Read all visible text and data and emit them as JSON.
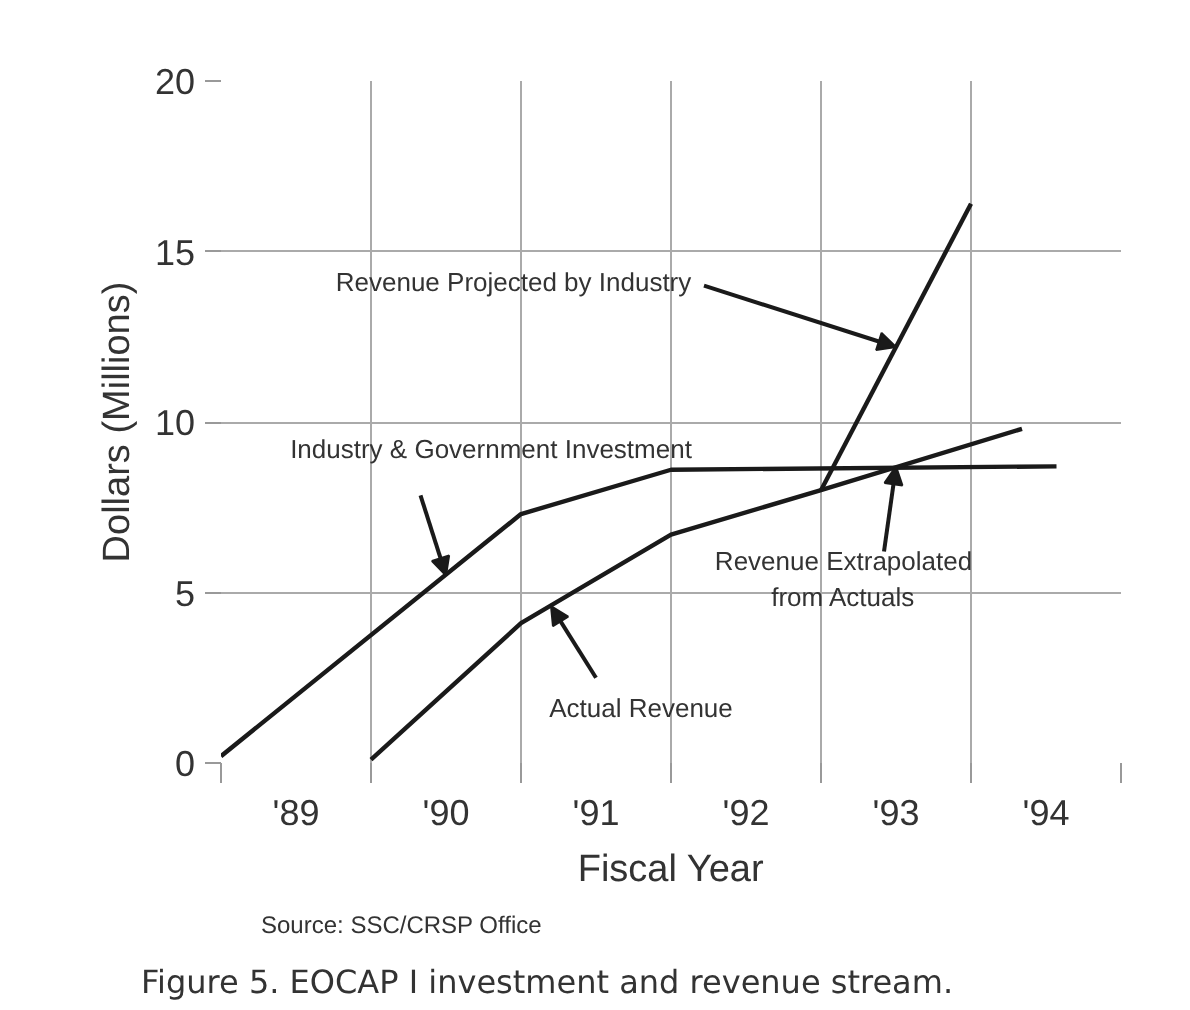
{
  "chart_data": {
    "type": "line",
    "title": "Figure 5. EOCAP I investment and revenue stream.",
    "xlabel": "Fiscal Year",
    "ylabel": "Dollars (Millions)",
    "annotations": [
      "Source: SSC/CRSP Office",
      {
        "text": "Industry & Government Investment",
        "x": 90.0,
        "y": 5.5
      },
      {
        "text": "Actual Revenue",
        "x": 90.7,
        "y": 4.6
      },
      {
        "text": "Revenue Extrapolated\nfrom Actuals",
        "x": 93.0,
        "y": 8.7
      },
      {
        "text": "Revenue Projected by Industry",
        "x": 93.0,
        "y": 12.2
      }
    ],
    "xlim": [
      88.5,
      94.5
    ],
    "ylim": [
      0,
      20
    ],
    "yticks": [
      0,
      5,
      10,
      15,
      20
    ],
    "xticks": [
      {
        "value": 88.5,
        "label": null
      },
      {
        "value": 89,
        "label": "'89"
      },
      {
        "value": 89.5,
        "label": null
      },
      {
        "value": 90,
        "label": "'90"
      },
      {
        "value": 90.5,
        "label": null
      },
      {
        "value": 91,
        "label": "'91"
      },
      {
        "value": 91.5,
        "label": null
      },
      {
        "value": 92,
        "label": "'92"
      },
      {
        "value": 92.5,
        "label": null
      },
      {
        "value": 93,
        "label": "'93"
      },
      {
        "value": 93.5,
        "label": null
      },
      {
        "value": 94,
        "label": "'94"
      },
      {
        "value": 94.5,
        "label": null
      }
    ],
    "grid": true,
    "marker": "none",
    "line_style": "solid",
    "series": [
      {
        "color": "#1a1a1a",
        "x": [
          88.5,
          90.5,
          91.5,
          94.07
        ],
        "values": [
          0.2,
          7.3,
          8.6,
          8.7
        ]
      },
      {
        "color": "#1a1a1a",
        "x": [
          89.5,
          90.5,
          91.5,
          92.5,
          93.84
        ],
        "values": [
          0.1,
          4.1,
          6.7,
          8.0,
          9.8
        ]
      },
      {
        "color": "#1a1a1a",
        "x": [
          92.5,
          93.5
        ],
        "values": [
          8.0,
          16.4
        ]
      }
    ]
  }
}
